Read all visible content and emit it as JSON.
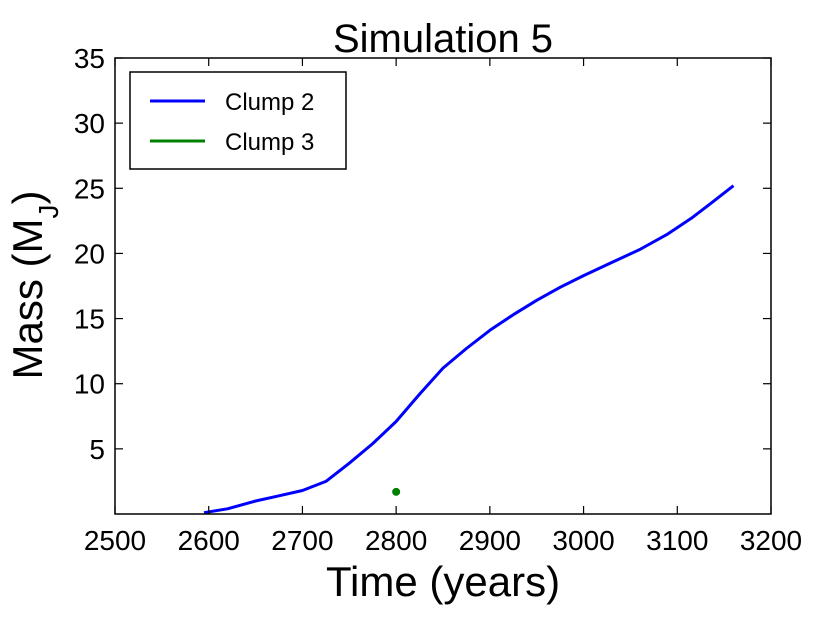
{
  "chart_data": {
    "type": "line",
    "title": "Simulation 5",
    "xlabel": "Time (years)",
    "ylabel_main": "Mass (M",
    "ylabel_sub": "J",
    "ylabel_close": ")",
    "xlim": [
      2500,
      3200
    ],
    "ylim": [
      0,
      35
    ],
    "xticks": [
      2500,
      2600,
      2700,
      2800,
      2900,
      3000,
      3100,
      3200
    ],
    "yticks": [
      5,
      10,
      15,
      20,
      25,
      30,
      35
    ],
    "grid": false,
    "legend_position": "top-left",
    "series": [
      {
        "name": "Clump 2",
        "color": "#0000ff",
        "style": "line",
        "x": [
          2595,
          2620,
          2650,
          2675,
          2700,
          2725,
          2750,
          2775,
          2800,
          2825,
          2850,
          2875,
          2900,
          2925,
          2950,
          2975,
          3000,
          3030,
          3060,
          3090,
          3115,
          3135,
          3160
        ],
        "y": [
          0.1,
          0.4,
          1.0,
          1.4,
          1.8,
          2.5,
          3.9,
          5.4,
          7.1,
          9.2,
          11.2,
          12.7,
          14.1,
          15.3,
          16.4,
          17.4,
          18.3,
          19.3,
          20.3,
          21.5,
          22.7,
          23.8,
          25.2
        ]
      },
      {
        "name": "Clump 3",
        "color": "#008000",
        "style": "marker",
        "x": [
          2800
        ],
        "y": [
          1.7
        ]
      }
    ]
  }
}
